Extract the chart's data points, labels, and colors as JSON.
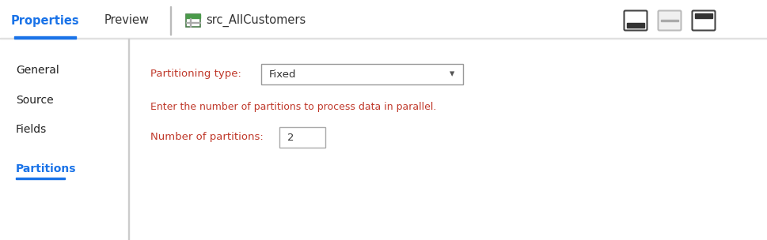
{
  "bg_color": "#ffffff",
  "separator_color": "#e0e0e0",
  "tab_active_text": "Properties",
  "tab_active_color": "#1a73e8",
  "tab_active_underline": "#1a73e8",
  "tab_inactive_texts": [
    "Preview"
  ],
  "tab_inactive_color": "#333333",
  "title_icon_color": "#5f6368",
  "title_text": "src_AllCustomers",
  "title_color": "#333333",
  "left_nav_items": [
    "General",
    "Source",
    "Fields",
    "Partitions"
  ],
  "left_nav_active": "Partitions",
  "left_nav_active_color": "#1a73e8",
  "left_nav_underline_color": "#1a73e8",
  "left_nav_color": "#222222",
  "label_color": "#c0392b",
  "label_partitioning_type": "Partitioning type:",
  "dropdown_text": "Fixed",
  "dropdown_border": "#999999",
  "dropdown_bg": "#ffffff",
  "hint_text": "Enter the number of partitions to process data in parallel.",
  "hint_color": "#c0392b",
  "label_num_partitions": "Number of partitions:",
  "input_value": "2",
  "input_border": "#aaaaaa",
  "input_bg": "#ffffff",
  "vertical_sep_color": "#cccccc",
  "icon_border": "#444444",
  "icon_mid_border": "#bbbbbb",
  "fig_width": 9.69,
  "fig_height": 3.04,
  "dpi": 100
}
